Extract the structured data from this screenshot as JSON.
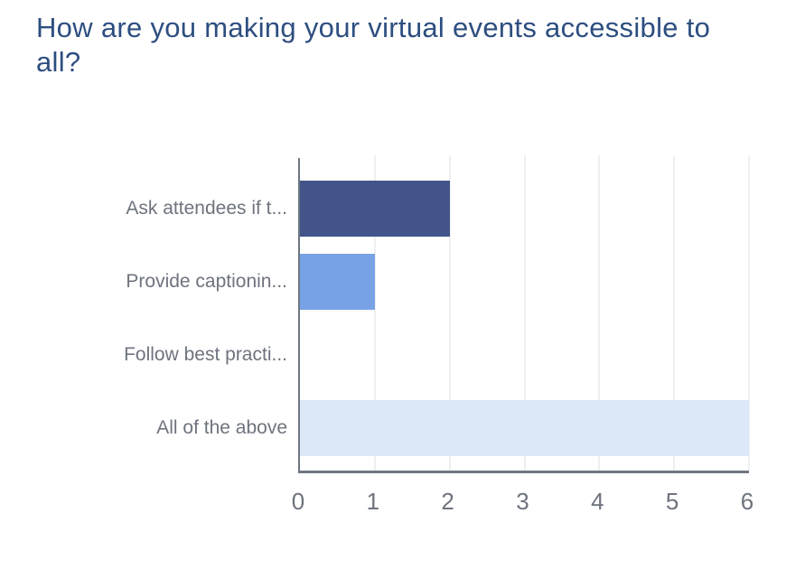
{
  "chart_data": {
    "type": "bar",
    "orientation": "horizontal",
    "title": "How are you making your virtual events accessible to all?",
    "categories": [
      "Ask attendees if t...",
      "Provide captionin...",
      "Follow best practi...",
      "All of the above"
    ],
    "values": [
      2,
      1,
      0,
      6
    ],
    "bar_colors": [
      "#43548a",
      "#78a2e6",
      "transparent",
      "#dce7f7"
    ],
    "xlabel": "",
    "ylabel": "",
    "xlim": [
      0,
      6
    ],
    "xticks": [
      "0",
      "1",
      "2",
      "3",
      "4",
      "5",
      "6"
    ],
    "grid": "vertical",
    "legend": "none"
  },
  "styles": {
    "title_color": "#2d4e80",
    "label_color": "#6e737e",
    "tick_color": "#6e737e",
    "axis_color": "#6e7681",
    "gridline_color": "#eeeff1",
    "background": "#ffffff"
  }
}
